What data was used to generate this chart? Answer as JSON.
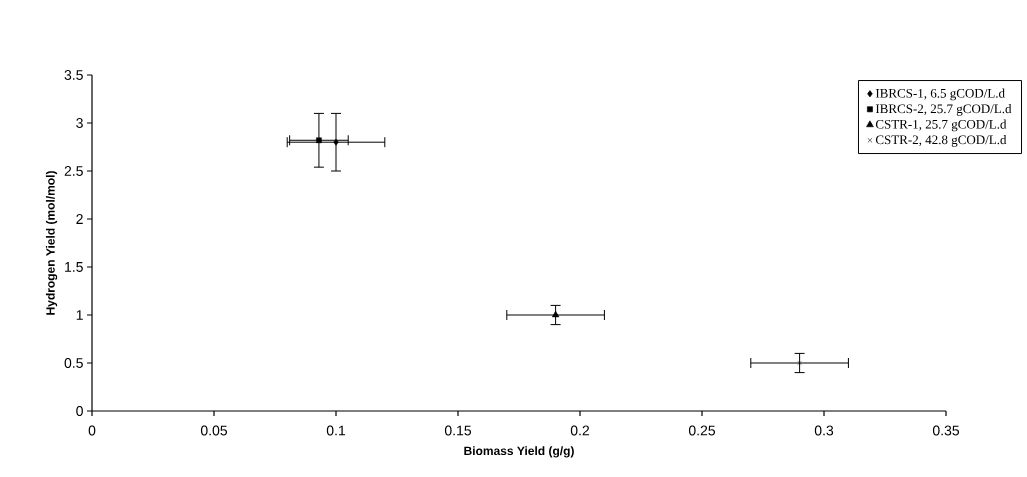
{
  "chart_data": {
    "type": "scatter",
    "xlabel": "Biomass Yield (g/g)",
    "ylabel": "Hydrogen Yield (mol/mol)",
    "xlim": [
      0,
      0.35
    ],
    "ylim": [
      0,
      3.5
    ],
    "xticks": [
      0,
      0.05,
      0.1,
      0.15,
      0.2,
      0.25,
      0.3,
      0.35
    ],
    "yticks": [
      0,
      0.5,
      1,
      1.5,
      2,
      2.5,
      3,
      3.5
    ],
    "grid": false,
    "legend": "top right",
    "series": [
      {
        "name": "IBRCS-1, 6.5    gCOD/L.d",
        "color": "#000000",
        "marker": "diamond",
        "x": [
          0.1
        ],
        "values": [
          2.8
        ],
        "errors": [
          0.3
        ],
        "xerrors": [
          0.02
        ]
      },
      {
        "name": "IBRCS-2, 25.7 gCOD/L.d",
        "color": "#000000",
        "marker": "square",
        "x": [
          0.093
        ],
        "values": [
          2.82
        ],
        "errors": [
          0.28
        ],
        "xerrors": [
          0.012
        ]
      },
      {
        "name": "CSTR-1, 25.7 gCOD/L.d",
        "color": "#000000",
        "marker": "triangle",
        "x": [
          0.19
        ],
        "values": [
          1.0
        ],
        "errors": [
          0.1
        ],
        "xerrors": [
          0.02
        ]
      },
      {
        "name": "CSTR-2, 42.8 gCOD/L.d",
        "color": "#000000",
        "marker": "cross",
        "x": [
          0.29
        ],
        "values": [
          0.5
        ],
        "errors": [
          0.1
        ],
        "xerrors": [
          0.02
        ]
      }
    ]
  }
}
